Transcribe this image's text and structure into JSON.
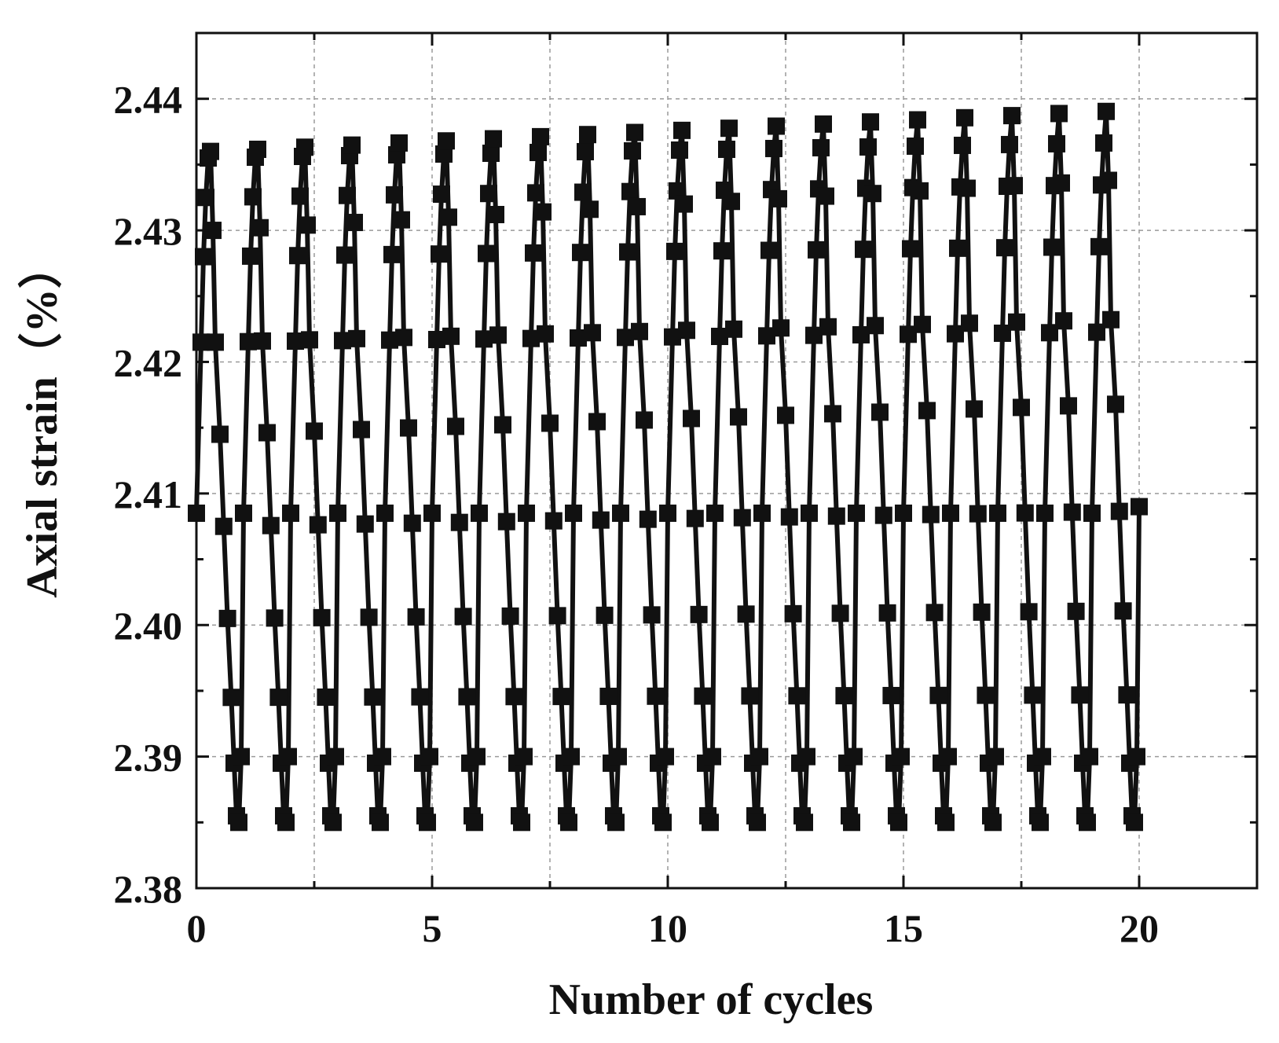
{
  "chart_data": {
    "type": "line",
    "title": "",
    "xlabel": "Number of cycles",
    "ylabel": "Axial strain（%）",
    "xlim": [
      0,
      22.5
    ],
    "ylim": [
      2.38,
      2.445
    ],
    "xticks": [
      0,
      5,
      10,
      15,
      20
    ],
    "yticks": [
      2.38,
      2.39,
      2.4,
      2.41,
      2.42,
      2.43,
      2.44
    ],
    "grid": true,
    "legend": "none",
    "marker": "square",
    "colors": {
      "series": "#111111",
      "grid": "#9a9a9a",
      "axes": "#111111"
    },
    "cycles": 20,
    "cycle_shape_phase": [
      0.0,
      0.1,
      0.15,
      0.2,
      0.25,
      0.3,
      0.35,
      0.4,
      0.5,
      0.58,
      0.66,
      0.74,
      0.8,
      0.85,
      0.9,
      0.95
    ],
    "cycle_shape_level": [
      2.4085,
      2.4215,
      2.428,
      2.4325,
      2.4355,
      2.436,
      2.43,
      2.4215,
      2.4145,
      2.4075,
      2.4005,
      2.3945,
      2.3895,
      2.3855,
      2.385,
      2.39
    ],
    "peak_growth_per_cycle": [
      0.0,
      4e-05,
      4e-05,
      5e-05,
      6e-05,
      0.00016,
      0.0002,
      9e-05,
      0.00012,
      6e-05,
      3e-05,
      1e-05,
      0.0,
      0.0,
      0.0,
      0.0
    ],
    "series": [
      {
        "x_end": 20.0,
        "y_end": 2.409
      }
    ]
  }
}
